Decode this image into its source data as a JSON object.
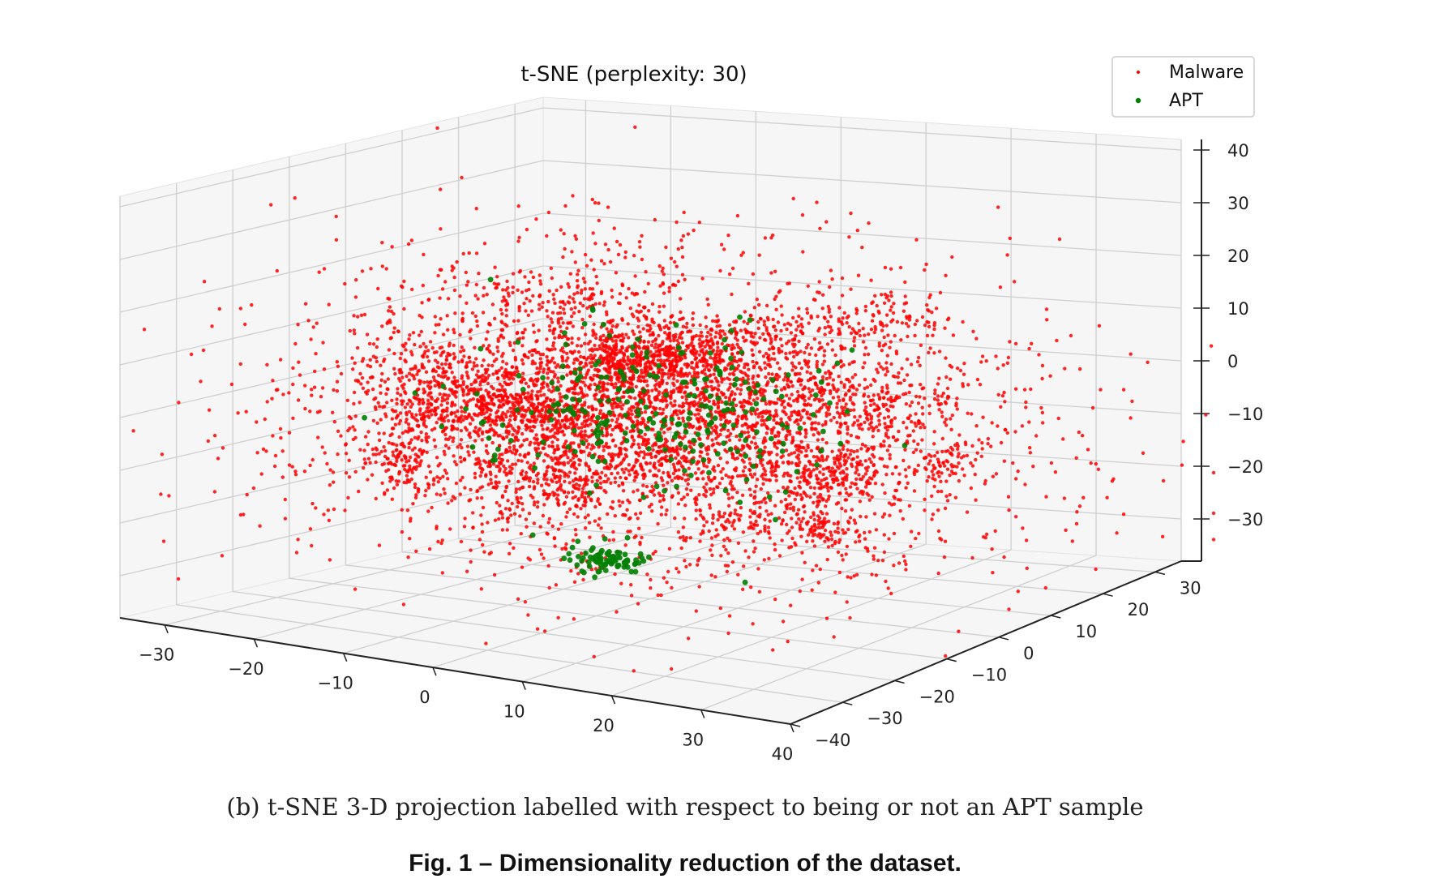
{
  "chart_data": {
    "type": "scatter",
    "projection": "3d",
    "title": "t-SNE (perplexity: 30)",
    "legend": {
      "position": "top-right",
      "entries": [
        {
          "label": "Malware",
          "color": "#ff0000"
        },
        {
          "label": "APT",
          "color": "#008000"
        }
      ]
    },
    "x_axis": {
      "ticks": [
        "−30",
        "−20",
        "−10",
        "0",
        "10",
        "20",
        "30",
        "40"
      ],
      "range": [
        -35,
        40
      ]
    },
    "y_axis": {
      "ticks": [
        "−40",
        "−30",
        "−20",
        "−10",
        "0",
        "10",
        "20",
        "30"
      ],
      "range": [
        -40,
        35
      ]
    },
    "z_axis": {
      "ticks": [
        "−30",
        "−20",
        "−10",
        "0",
        "10",
        "20",
        "30",
        "40"
      ],
      "range": [
        -38,
        42
      ]
    },
    "series": [
      {
        "name": "Malware",
        "color": "#ff0000",
        "count": 6500,
        "spread": 17
      },
      {
        "name": "APT",
        "color": "#008000",
        "count": 340,
        "spread": 9
      }
    ],
    "grid": true
  },
  "caption": "(b) t-SNE 3-D projection labelled with respect to being or not an APT sample",
  "figure_title": "Fig. 1 – Dimensionality reduction of the dataset."
}
